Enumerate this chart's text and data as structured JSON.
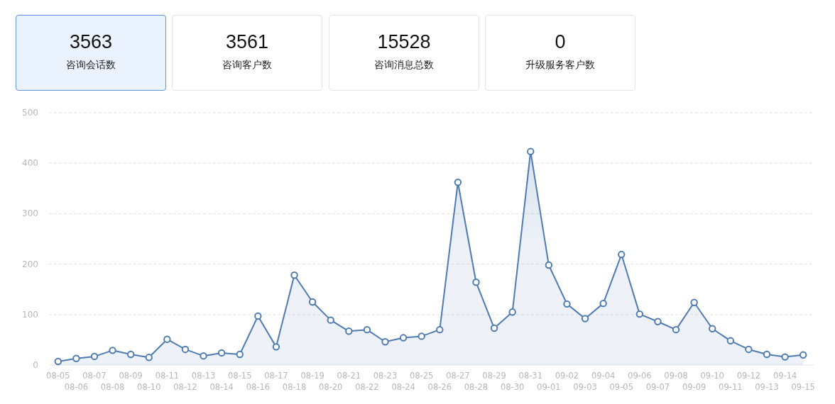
{
  "chart_data": [
    {
      "type": "other",
      "annotations": [
        "3563",
        "咨询会话数",
        "3561",
        "咨询客户数",
        "15528",
        "咨询消息总数",
        "0",
        "升级服务客户数"
      ]
    },
    {
      "type": "area",
      "categories": [
        "08-05",
        "08-06",
        "08-07",
        "08-08",
        "08-09",
        "08-10",
        "08-11",
        "08-12",
        "08-13",
        "08-14",
        "08-15",
        "08-16",
        "08-17",
        "08-18",
        "08-19",
        "08-20",
        "08-21",
        "08-22",
        "08-23",
        "08-24",
        "08-25",
        "08-26",
        "08-27",
        "08-28",
        "08-29",
        "08-30",
        "08-31",
        "09-01",
        "09-02",
        "09-03",
        "09-04",
        "09-05",
        "09-06",
        "09-07",
        "09-08",
        "09-09",
        "09-10",
        "09-11",
        "09-12",
        "09-13",
        "09-14",
        "09-15"
      ],
      "series": [
        {
          "color": "#4f7bb3",
          "values": [
            7,
            13,
            17,
            29,
            21,
            15,
            51,
            31,
            18,
            24,
            21,
            97,
            36,
            178,
            125,
            89,
            67,
            70,
            46,
            54,
            57,
            70,
            362,
            164,
            73,
            105,
            423,
            198,
            121,
            92,
            122,
            219,
            101,
            86,
            70,
            124,
            72,
            48,
            31,
            21,
            16,
            20
          ]
        }
      ],
      "ylim": [
        0,
        500
      ],
      "yticks": [
        0,
        100,
        200,
        300,
        400,
        500
      ],
      "grid": "y",
      "marker": "circle"
    }
  ]
}
